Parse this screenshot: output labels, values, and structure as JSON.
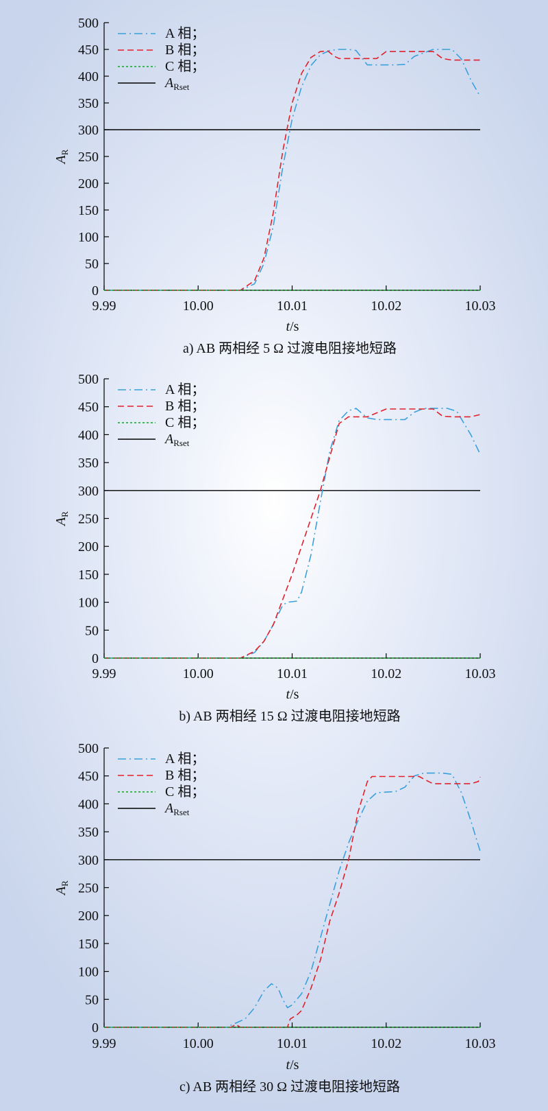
{
  "legend": {
    "a": "A 相；",
    "b": "B 相；",
    "c": "C 相；",
    "ref_main": "A",
    "ref_sub": "Rset"
  },
  "axis": {
    "ylabel_main": "A",
    "ylabel_sub": "R",
    "xlabel_main": "t",
    "xlabel_unit": "/s"
  },
  "colors": {
    "a": "#3aa0db",
    "b": "#e0202a",
    "c": "#1e9a32",
    "ref": "#000000"
  },
  "chart_data": [
    {
      "type": "line",
      "caption": "a) AB 两相经 5 Ω 过渡电阻接地短路",
      "xlim": [
        9.99,
        10.03
      ],
      "ylim": [
        0,
        500
      ],
      "xticks": [
        "9.99",
        "10.00",
        "10.01",
        "10.02",
        "10.03"
      ],
      "yticks": [
        "0",
        "50",
        "100",
        "150",
        "200",
        "250",
        "300",
        "350",
        "400",
        "450",
        "500"
      ],
      "threshold": 300,
      "series": [
        {
          "name": "A 相；",
          "style": "dashdot",
          "color": "#3aa0db",
          "x": [
            9.99,
            10.0045,
            10.006,
            10.007,
            10.008,
            10.009,
            10.01,
            10.011,
            10.012,
            10.013,
            10.014,
            10.015,
            10.016,
            10.0168,
            10.018,
            10.021,
            10.022,
            10.023,
            10.025,
            10.027,
            10.028,
            10.029,
            10.03
          ],
          "y": [
            0,
            0,
            12,
            50,
            120,
            230,
            320,
            380,
            420,
            440,
            448,
            450,
            450,
            448,
            421,
            421,
            422,
            437,
            450,
            450,
            432,
            393,
            362
          ]
        },
        {
          "name": "B 相；",
          "style": "dashed",
          "color": "#e0202a",
          "x": [
            9.99,
            10.0045,
            10.006,
            10.007,
            10.008,
            10.009,
            10.01,
            10.011,
            10.012,
            10.013,
            10.0138,
            10.0145,
            10.015,
            10.016,
            10.019,
            10.02,
            10.0225,
            10.025,
            10.026,
            10.027,
            10.03
          ],
          "y": [
            0,
            0,
            18,
            60,
            145,
            260,
            350,
            405,
            435,
            446,
            447,
            437,
            433,
            433,
            433,
            446,
            446,
            446,
            433,
            430,
            430
          ]
        },
        {
          "name": "C 相；",
          "style": "dotted",
          "color": "#1e9a32",
          "x": [
            9.99,
            10.03
          ],
          "y": [
            0,
            0
          ]
        }
      ]
    },
    {
      "type": "line",
      "caption": "b) AB 两相经 15 Ω 过渡电阻接地短路",
      "xlim": [
        9.99,
        10.03
      ],
      "ylim": [
        0,
        500
      ],
      "xticks": [
        "9.99",
        "10.00",
        "10.01",
        "10.02",
        "10.03"
      ],
      "yticks": [
        "0",
        "50",
        "100",
        "150",
        "200",
        "250",
        "300",
        "350",
        "400",
        "450",
        "500"
      ],
      "threshold": 300,
      "series": [
        {
          "name": "A 相；",
          "style": "dashdot",
          "color": "#3aa0db",
          "x": [
            9.99,
            10.0045,
            10.006,
            10.007,
            10.008,
            10.009,
            10.0095,
            10.0105,
            10.011,
            10.012,
            10.013,
            10.014,
            10.015,
            10.016,
            10.0168,
            10.018,
            10.019,
            10.022,
            10.023,
            10.024,
            10.0265,
            10.0275,
            10.029,
            10.03
          ],
          "y": [
            0,
            0,
            10,
            30,
            60,
            95,
            100,
            102,
            118,
            185,
            280,
            370,
            425,
            443,
            447,
            430,
            427,
            427,
            440,
            447,
            447,
            442,
            400,
            365
          ]
        },
        {
          "name": "B 相；",
          "style": "dashed",
          "color": "#e0202a",
          "x": [
            9.99,
            10.0045,
            10.006,
            10.007,
            10.008,
            10.009,
            10.01,
            10.011,
            10.012,
            10.013,
            10.014,
            10.015,
            10.016,
            10.018,
            10.02,
            10.025,
            10.026,
            10.027,
            10.029,
            10.03
          ],
          "y": [
            0,
            0,
            12,
            30,
            60,
            105,
            150,
            200,
            250,
            300,
            360,
            420,
            432,
            432,
            446,
            446,
            433,
            432,
            432,
            436
          ]
        },
        {
          "name": "C 相；",
          "style": "dotted",
          "color": "#1e9a32",
          "x": [
            9.99,
            10.03
          ],
          "y": [
            0,
            0
          ]
        }
      ]
    },
    {
      "type": "line",
      "caption": "c) AB 两相经 30 Ω 过渡电阻接地短路",
      "xlim": [
        9.99,
        10.03
      ],
      "ylim": [
        0,
        500
      ],
      "xticks": [
        "9.99",
        "10.00",
        "10.01",
        "10.02",
        "10.03"
      ],
      "yticks": [
        "0",
        "50",
        "100",
        "150",
        "200",
        "250",
        "300",
        "350",
        "400",
        "450",
        "500"
      ],
      "threshold": 300,
      "series": [
        {
          "name": "A 相；",
          "style": "dashdot",
          "color": "#3aa0db",
          "x": [
            9.99,
            10.003,
            10.005,
            10.006,
            10.007,
            10.0078,
            10.0085,
            10.009,
            10.0095,
            10.01,
            10.011,
            10.012,
            10.013,
            10.014,
            10.015,
            10.016,
            10.017,
            10.018,
            10.019,
            10.021,
            10.022,
            10.023,
            10.024,
            10.026,
            10.027,
            10.028,
            10.029,
            10.03
          ],
          "y": [
            0,
            0,
            15,
            35,
            65,
            78,
            70,
            50,
            35,
            40,
            60,
            100,
            160,
            220,
            280,
            330,
            370,
            405,
            420,
            422,
            430,
            450,
            455,
            455,
            453,
            420,
            370,
            315
          ]
        },
        {
          "name": "B 相；",
          "style": "dashed",
          "color": "#e0202a",
          "x": [
            9.99,
            10.0035,
            10.004,
            10.0045,
            10.0095,
            10.0098,
            10.0105,
            10.011,
            10.012,
            10.013,
            10.014,
            10.015,
            10.016,
            10.017,
            10.018,
            10.0185,
            10.0235,
            10.0245,
            10.025,
            10.029,
            10.0298,
            10.03
          ],
          "y": [
            0,
            0,
            5,
            0,
            0,
            15,
            22,
            30,
            70,
            120,
            190,
            240,
            300,
            385,
            440,
            449,
            449,
            440,
            436,
            436,
            440,
            448
          ]
        },
        {
          "name": "C 相；",
          "style": "dotted",
          "color": "#1e9a32",
          "x": [
            9.99,
            10.03
          ],
          "y": [
            0,
            0
          ]
        }
      ]
    }
  ]
}
